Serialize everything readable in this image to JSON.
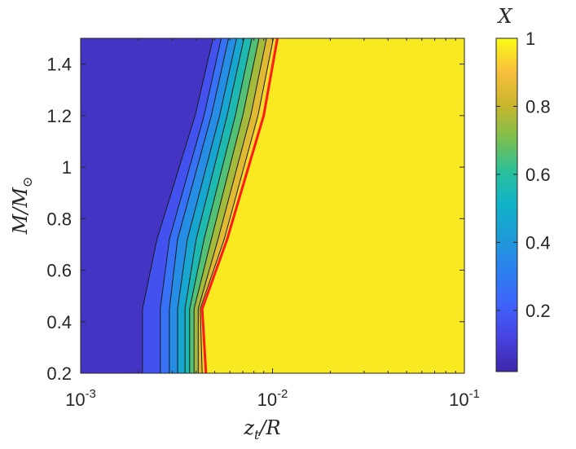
{
  "chart_data": {
    "type": "heatmap",
    "subtype": "filled-contour",
    "xlabel": "z_t/R",
    "ylabel": "M/M_⊙",
    "colorbar_label": "X",
    "x_scale": "log",
    "xlim": [
      0.001,
      0.1
    ],
    "ylim": [
      0.2,
      1.5
    ],
    "x_ticks": [
      {
        "mant": "10",
        "exp": "-3"
      },
      {
        "mant": "10",
        "exp": "-2"
      },
      {
        "mant": "10",
        "exp": "-1"
      }
    ],
    "y_ticks": [
      "0.2",
      "0.4",
      "0.6",
      "0.8",
      "1",
      "1.2",
      "1.4"
    ],
    "y_tick_values": [
      0.2,
      0.4,
      0.6,
      0.8,
      1.0,
      1.2,
      1.4
    ],
    "colorbar_ticks": [
      "0.2",
      "0.4",
      "0.6",
      "0.8",
      "1"
    ],
    "colorbar_tick_values": [
      0.2,
      0.4,
      0.6,
      0.8,
      1.0
    ],
    "colorbar_range": [
      0.02,
      1.0
    ],
    "colormap": "parula",
    "contour_levels": [
      0.1,
      0.2,
      0.3,
      0.4,
      0.5,
      0.6,
      0.7,
      0.8,
      0.9
    ],
    "highlight_contour": {
      "level": 0.99,
      "color": "#ff1a1a"
    },
    "region_low_value": 0.05,
    "region_high_value": 0.97,
    "contours": [
      {
        "level": 0.1,
        "points": [
          [
            0.0021,
            0.2
          ],
          [
            0.0021,
            0.45
          ],
          [
            0.0025,
            0.72
          ],
          [
            0.00395,
            1.2
          ],
          [
            0.0049,
            1.5
          ]
        ]
      },
      {
        "level": 0.2,
        "points": [
          [
            0.0026,
            0.2
          ],
          [
            0.0026,
            0.45
          ],
          [
            0.0029,
            0.72
          ],
          [
            0.0044,
            1.2
          ],
          [
            0.0054,
            1.5
          ]
        ]
      },
      {
        "level": 0.3,
        "points": [
          [
            0.0029,
            0.2
          ],
          [
            0.0029,
            0.45
          ],
          [
            0.0032,
            0.72
          ],
          [
            0.0048,
            1.2
          ],
          [
            0.0059,
            1.5
          ]
        ]
      },
      {
        "level": 0.4,
        "points": [
          [
            0.0032,
            0.2
          ],
          [
            0.0032,
            0.45
          ],
          [
            0.0036,
            0.72
          ],
          [
            0.0053,
            1.2
          ],
          [
            0.0065,
            1.5
          ]
        ]
      },
      {
        "level": 0.5,
        "points": [
          [
            0.0035,
            0.2
          ],
          [
            0.0035,
            0.45
          ],
          [
            0.004,
            0.72
          ],
          [
            0.0058,
            1.2
          ],
          [
            0.0071,
            1.5
          ]
        ]
      },
      {
        "level": 0.6,
        "points": [
          [
            0.0037,
            0.2
          ],
          [
            0.0037,
            0.45
          ],
          [
            0.0044,
            0.72
          ],
          [
            0.0064,
            1.2
          ],
          [
            0.0078,
            1.5
          ]
        ]
      },
      {
        "level": 0.7,
        "points": [
          [
            0.0039,
            0.2
          ],
          [
            0.0039,
            0.45
          ],
          [
            0.0048,
            0.72
          ],
          [
            0.007,
            1.2
          ],
          [
            0.0085,
            1.5
          ]
        ]
      },
      {
        "level": 0.8,
        "points": [
          [
            0.0041,
            0.2
          ],
          [
            0.0041,
            0.45
          ],
          [
            0.0052,
            0.72
          ],
          [
            0.0077,
            1.2
          ],
          [
            0.0093,
            1.5
          ]
        ]
      },
      {
        "level": 0.9,
        "points": [
          [
            0.0043,
            0.2
          ],
          [
            0.0042,
            0.45
          ],
          [
            0.0056,
            0.72
          ],
          [
            0.0084,
            1.2
          ],
          [
            0.0101,
            1.5
          ]
        ]
      },
      {
        "level": 0.99,
        "points": [
          [
            0.0045,
            0.2
          ],
          [
            0.0043,
            0.45
          ],
          [
            0.0058,
            0.72
          ],
          [
            0.009,
            1.2
          ],
          [
            0.0106,
            1.5
          ]
        ]
      }
    ]
  }
}
